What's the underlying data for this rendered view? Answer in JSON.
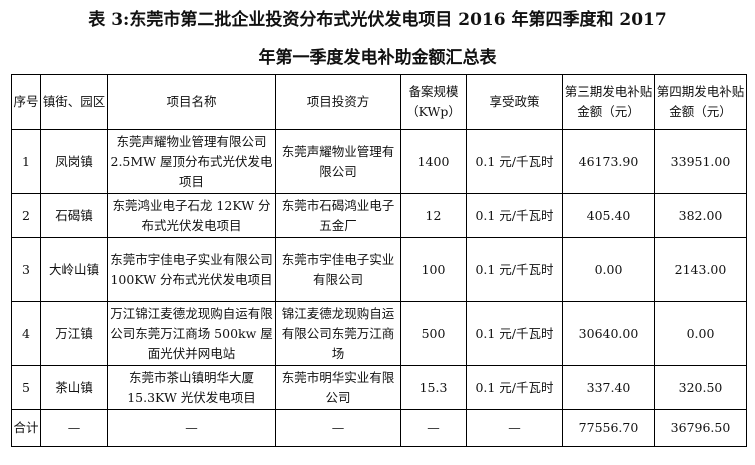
{
  "title": {
    "line1": "表 3:东莞市第二批企业投资分布式光伏发电项目 2016 年第四季度和 2017",
    "line2": "年第一季度发电补助金额汇总表"
  },
  "headers": [
    "序号",
    "镇街、园区",
    "项目名称",
    "项目投资方",
    "备案规模（KWp）",
    "享受政策",
    "第三期发电补贴金额（元）",
    "第四期发电补贴金额（元）"
  ],
  "rows": [
    {
      "no": "1",
      "town": "凤岗镇",
      "project": "东莞声耀物业管理有限公司 2.5MW 屋顶分布式光伏发电项目",
      "investor": "东莞声耀物业管理有限公司",
      "scale": "1400",
      "policy": "0.1 元/千瓦时",
      "p3": "46173.90",
      "p4": "33951.00"
    },
    {
      "no": "2",
      "town": "石碣镇",
      "project": "东莞鸿业电子石龙 12KW 分布式光伏发电项目",
      "investor": "东莞市石碣鸿业电子五金厂",
      "scale": "12",
      "policy": "0.1 元/千瓦时",
      "p3": "405.40",
      "p4": "382.00"
    },
    {
      "no": "3",
      "town": "大岭山镇",
      "project": "东莞市宇佳电子实业有限公司 100KW 分布式光伏发电项目",
      "investor": "东莞市宇佳电子实业有限公司",
      "scale": "100",
      "policy": "0.1 元/千瓦时",
      "p3": "0.00",
      "p4": "2143.00"
    },
    {
      "no": "4",
      "town": "万江镇",
      "project": "万江锦江麦德龙现购自运有限公司东莞万江商场 500kw 屋面光伏并网电站",
      "investor": "锦江麦德龙现购自运有限公司东莞万江商场",
      "scale": "500",
      "policy": "0.1 元/千瓦时",
      "p3": "30640.00",
      "p4": "0.00"
    },
    {
      "no": "5",
      "town": "茶山镇",
      "project": "东莞市茶山镇明华大厦 15.3KW 光伏发电项目",
      "investor": "东莞市明华实业有限公司",
      "scale": "15.3",
      "policy": "0.1 元/千瓦时",
      "p3": "337.40",
      "p4": "320.50"
    }
  ],
  "total": {
    "label": "合计",
    "town": "—",
    "project": "—",
    "investor": "—",
    "scale": "—",
    "policy": "—",
    "p3": "77556.70",
    "p4": "36796.50"
  }
}
